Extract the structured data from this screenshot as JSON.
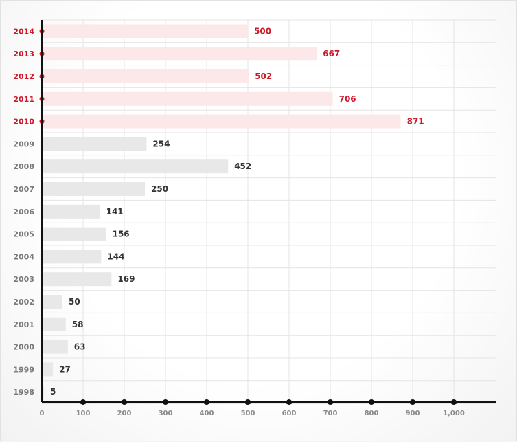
{
  "chart_data": {
    "type": "bar",
    "orientation": "horizontal",
    "categories": [
      "2014",
      "2013",
      "2012",
      "2011",
      "2010",
      "2009",
      "2008",
      "2007",
      "2006",
      "2005",
      "2004",
      "2003",
      "2002",
      "2001",
      "2000",
      "1999",
      "1998"
    ],
    "values": [
      500,
      667,
      502,
      706,
      871,
      254,
      452,
      250,
      141,
      156,
      144,
      169,
      50,
      58,
      63,
      27,
      5
    ],
    "highlighted": [
      "2014",
      "2013",
      "2012",
      "2011",
      "2010"
    ],
    "xlim": [
      0,
      1100
    ],
    "x_ticks": [
      0,
      100,
      200,
      300,
      400,
      500,
      600,
      700,
      800,
      900,
      1000
    ],
    "x_tick_labels": [
      "0",
      "100",
      "200",
      "300",
      "400",
      "500",
      "600",
      "700",
      "800",
      "900",
      "1,000"
    ],
    "grid": true,
    "colors": {
      "highlight_bar": "#fce8e8",
      "highlight_text": "#cc1a2a",
      "normal_bar": "#e8e8e8",
      "normal_text": "#333333",
      "year_text": "#7a7a7a",
      "axis": "#111111",
      "grid": "#e4e4e4"
    }
  }
}
